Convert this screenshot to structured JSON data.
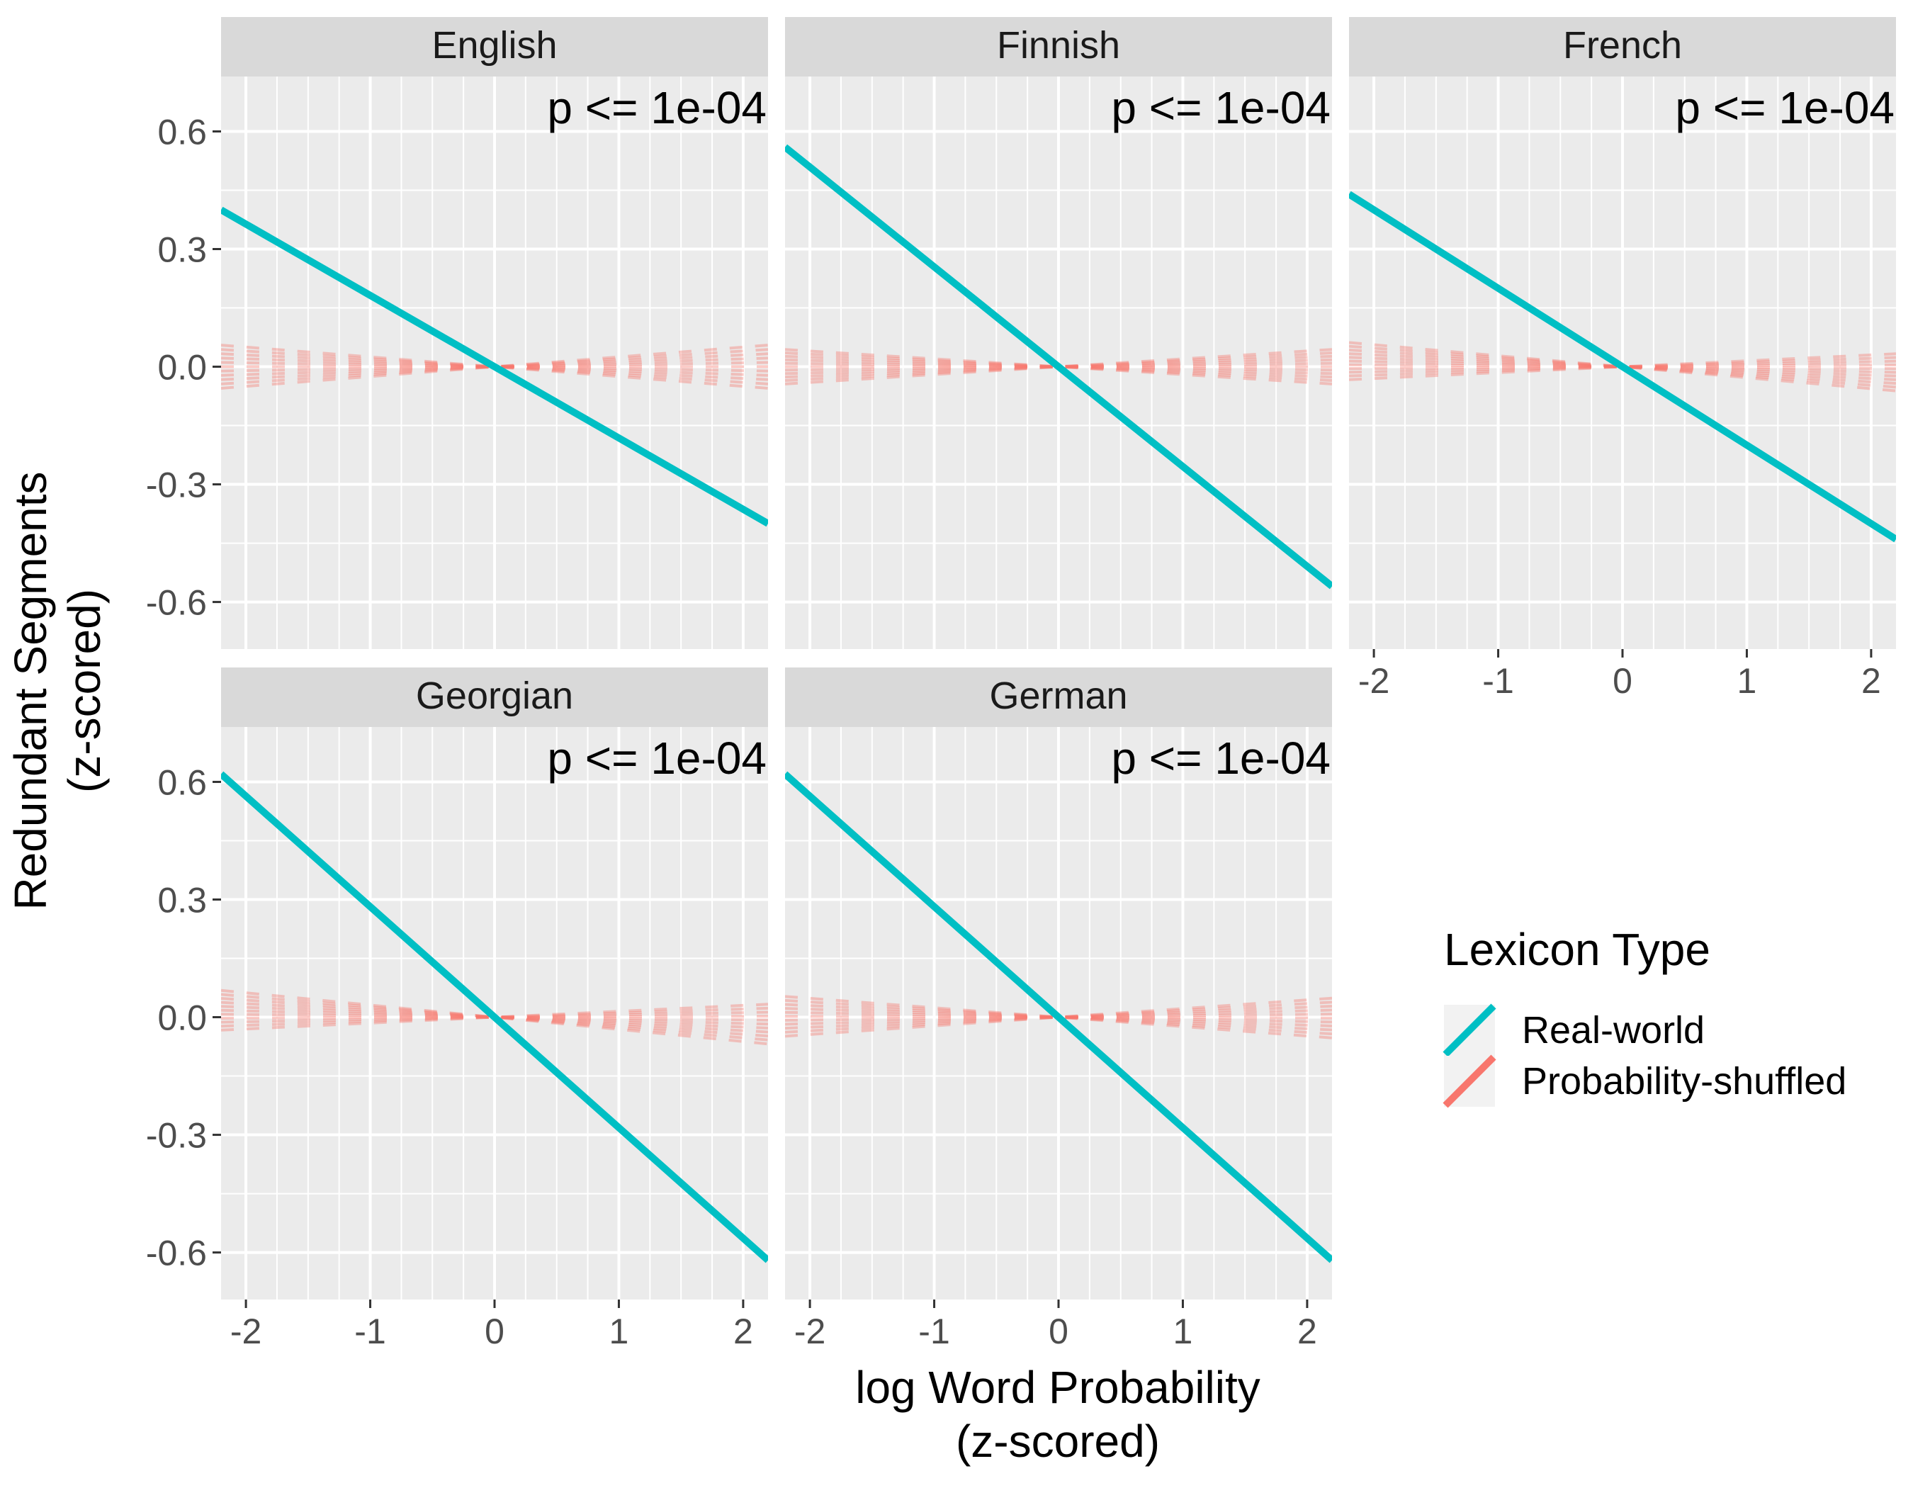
{
  "chart_data": {
    "type": "line",
    "xlabel": "log Word Probability\n(z-scored)",
    "ylabel": "Redundant Segments\n(z-scored)",
    "xlim": [
      -2.2,
      2.2
    ],
    "ylim": [
      -0.72,
      0.74
    ],
    "x_ticks": [
      -2,
      -1,
      0,
      1,
      2
    ],
    "x_tick_labels": [
      "-2",
      "-1",
      "0",
      "1",
      "2"
    ],
    "y_ticks": [
      0.6,
      0.3,
      0.0,
      -0.3,
      -0.6
    ],
    "y_tick_labels": [
      "0.6",
      "0.3",
      "0.0",
      "-0.3",
      "-0.6"
    ],
    "grid": true,
    "legend": {
      "title": "Lexicon Type",
      "position": "right",
      "entries": [
        {
          "label": "Real-world",
          "color": "#00BFC4"
        },
        {
          "label": "Probability-shuffled",
          "color": "#F8766D"
        }
      ]
    },
    "colors": {
      "real_world": "#00BFC4",
      "shuffled": "#F8766D",
      "panel_bg": "#EBEBEB",
      "strip_bg": "#D9D9D9"
    },
    "shuffled_slope_range": [
      -0.026,
      0.026
    ],
    "panels": [
      {
        "title": "English",
        "annotation": "p <= 1e-04",
        "real_world": {
          "x": [
            -2.2,
            2.2
          ],
          "y": [
            0.4,
            -0.4
          ]
        },
        "shuffled_slope_range": [
          -0.025,
          0.025
        ]
      },
      {
        "title": "Finnish",
        "annotation": "p <= 1e-04",
        "real_world": {
          "x": [
            -2.2,
            2.2
          ],
          "y": [
            0.56,
            -0.56
          ]
        },
        "shuffled_slope_range": [
          -0.02,
          0.02
        ]
      },
      {
        "title": "French",
        "annotation": "p <= 1e-04",
        "real_world": {
          "x": [
            -2.2,
            2.2
          ],
          "y": [
            0.44,
            -0.44
          ]
        },
        "shuffled_slope_range": [
          -0.028,
          0.015
        ]
      },
      {
        "title": "Georgian",
        "annotation": "p <= 1e-04",
        "real_world": {
          "x": [
            -2.2,
            2.2
          ],
          "y": [
            0.62,
            -0.62
          ]
        },
        "shuffled_slope_range": [
          -0.031,
          0.015
        ]
      },
      {
        "title": "German",
        "annotation": "p <= 1e-04",
        "real_world": {
          "x": [
            -2.2,
            2.2
          ],
          "y": [
            0.62,
            -0.62
          ]
        },
        "shuffled_slope_range": [
          -0.024,
          0.022
        ]
      }
    ]
  }
}
